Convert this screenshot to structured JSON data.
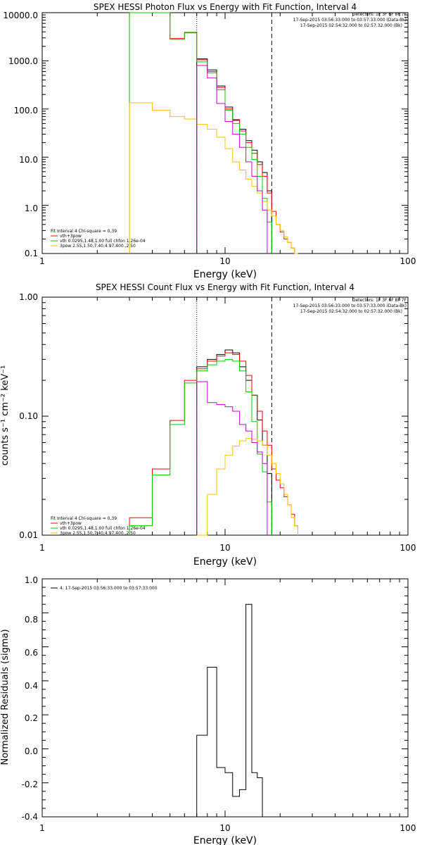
{
  "charts": [
    {
      "title": "SPEX HESSI Photon Flux vs Energy with Fit Function, Interval 4",
      "xlabel": "Energy (keV)",
      "ylabel": "",
      "legend_right": [
        "Detectors: 1F 3F 6F 8F 7F",
        "17-Sep-2015 03:56:33.000 to 03:57:33.000 (Data-Bk)",
        "17-Sep-2015 02:54:32.000 to 02:57:32.000 (Bk)"
      ],
      "legend_left": [
        "Fit Interval 4   Chi-square = 0.39",
        "vth+3pow",
        "vth 0.0295,1.48,1.00  full chfon 1.26e-04",
        "3pow 2.55,1.50,7.40,4.97,400.,2.50"
      ],
      "ticks_x": [
        "1",
        "10",
        "100"
      ],
      "ticks_y": [
        "0.1",
        "1.0",
        "10.0",
        "100.0",
        "1000.0",
        "10000.0"
      ]
    },
    {
      "title": "SPEX HESSI Count Flux vs Energy with Fit Function, Interval 4",
      "xlabel": "Energy (keV)",
      "ylabel": "counts s⁻¹ cm⁻² keV⁻¹",
      "legend_right": [
        "Detectors: 1F 3F 6F 8F 7F",
        "17-Sep-2015 03:56:33.000 to 03:57:33.000 (Data-Bk)",
        "17-Sep-2015 02:54:32.000 to 02:57:32.000 (Bk)"
      ],
      "legend_left": [
        "Fit Interval 4   Chi-square = 0.39",
        "vth+3pow",
        "vth 0.0295,1.48,1.00  full chfon 1.26e-04",
        "3pow 2.55,1.50,7.40,4.97,400.,2.50"
      ],
      "ticks_x": [
        "1",
        "10",
        "100"
      ],
      "ticks_y": [
        "0.01",
        "0.10",
        "1.00"
      ]
    },
    {
      "title": "",
      "xlabel": "Energy (keV)",
      "ylabel": "Normalized Residuals (sigma)",
      "legend_left": [
        "4. 17-Sep-2015 03:56:33.000 to 03:57:33.000"
      ],
      "ticks_x": [
        "1",
        "10",
        "100"
      ],
      "ticks_y": [
        "-0.4",
        "-0.2",
        "0.0",
        "0.2",
        "0.4",
        "0.6",
        "0.8",
        "1.0"
      ]
    }
  ],
  "chart_data": [
    {
      "type": "line",
      "xscale": "log",
      "yscale": "log",
      "xlim": [
        1,
        100
      ],
      "ylim": [
        0.1,
        10000
      ],
      "vlines": [
        {
          "x": 7.0,
          "style": "dotted"
        },
        {
          "x": 18.0,
          "style": "dashed"
        }
      ],
      "series": [
        {
          "name": "Data-Bk",
          "color": "#000000",
          "edges": [
            7,
            8,
            9,
            10,
            11,
            12,
            13,
            14,
            15,
            16,
            17,
            18
          ],
          "values": [
            1100,
            650,
            300,
            110,
            60,
            38,
            22,
            14,
            8,
            4.8,
            2.0
          ]
        },
        {
          "name": "vth+3pow",
          "color": "#ff0000",
          "edges": [
            3,
            4,
            5,
            6,
            7,
            8,
            9,
            10,
            11,
            12,
            13,
            14,
            15,
            16,
            17,
            18,
            19,
            20,
            21,
            22,
            23,
            24,
            25
          ],
          "values": [
            10000,
            10000,
            2900,
            3900,
            1050,
            600,
            280,
            100,
            58,
            35,
            20,
            12,
            7,
            4,
            1.8,
            0.75,
            0.4,
            0.28,
            0.2,
            0.17,
            0.13,
            0.1
          ]
        },
        {
          "name": "vth",
          "color": "#00cc00",
          "edges": [
            3,
            4,
            5,
            6,
            7,
            8,
            9,
            10,
            11,
            12,
            13,
            14,
            15,
            16,
            17,
            18
          ],
          "values": [
            10000,
            10000,
            2800,
            3800,
            950,
            560,
            250,
            95,
            50,
            30,
            16,
            9,
            4,
            1.4,
            0.45
          ]
        },
        {
          "name": "3pow",
          "color": "#ffc000",
          "edges": [
            3,
            4,
            5,
            6,
            7,
            8,
            9,
            10,
            11,
            12,
            13,
            14,
            15,
            16,
            17,
            18,
            19,
            20,
            21,
            22,
            23,
            24,
            25
          ],
          "values": [
            135,
            95,
            70,
            62,
            48,
            38,
            26,
            15,
            8,
            5.4,
            3.5,
            2.5,
            1.8,
            1.2,
            0.8,
            0.6,
            0.4,
            0.3,
            0.22,
            0.17,
            0.13,
            0.1
          ]
        },
        {
          "name": "magenta",
          "color": "#cc00cc",
          "edges": [
            7,
            8,
            9,
            10,
            11,
            12,
            13,
            14,
            15,
            16,
            17
          ],
          "values": [
            800,
            440,
            130,
            55,
            30,
            16,
            8,
            4,
            2,
            0.8
          ]
        }
      ]
    },
    {
      "type": "line",
      "xscale": "log",
      "yscale": "log",
      "xlim": [
        1,
        100
      ],
      "ylim": [
        0.01,
        1.0
      ],
      "vlines": [
        {
          "x": 7.0,
          "style": "dotted"
        },
        {
          "x": 18.0,
          "style": "dashed"
        }
      ],
      "series": [
        {
          "name": "Data-Bk",
          "color": "#000000",
          "edges": [
            7,
            8,
            9,
            10,
            11,
            12,
            13,
            14,
            15,
            16,
            17,
            18
          ],
          "values": [
            0.26,
            0.3,
            0.33,
            0.36,
            0.34,
            0.26,
            0.2,
            0.15,
            0.093,
            0.057,
            0.033
          ]
        },
        {
          "name": "vth+3pow",
          "color": "#ff0000",
          "edges": [
            3,
            4,
            5,
            6,
            7,
            8,
            9,
            10,
            11,
            12,
            13,
            14,
            15,
            16,
            17,
            18,
            19,
            20,
            21,
            22,
            23,
            24,
            25
          ],
          "values": [
            0.014,
            0.036,
            0.092,
            0.2,
            0.25,
            0.29,
            0.32,
            0.34,
            0.33,
            0.29,
            0.22,
            0.15,
            0.11,
            0.075,
            0.057,
            0.036,
            0.029,
            0.025,
            0.021,
            0.018,
            0.015,
            0.012
          ]
        },
        {
          "name": "vth",
          "color": "#00cc00",
          "edges": [
            3,
            4,
            5,
            6,
            7,
            8,
            9,
            10,
            11,
            12,
            13,
            14,
            15,
            16,
            17,
            18
          ],
          "values": [
            0.012,
            0.032,
            0.085,
            0.19,
            0.24,
            0.27,
            0.29,
            0.3,
            0.29,
            0.24,
            0.16,
            0.09,
            0.048,
            0.034,
            0.019
          ]
        },
        {
          "name": "3pow",
          "color": "#ffc000",
          "edges": [
            7,
            8,
            9,
            10,
            11,
            12,
            13,
            14,
            15,
            16,
            17,
            18,
            19,
            20,
            21,
            22,
            23,
            24,
            25
          ],
          "values": [
            0.01,
            0.022,
            0.036,
            0.047,
            0.056,
            0.062,
            0.065,
            0.064,
            0.062,
            0.057,
            0.047,
            0.04,
            0.033,
            0.027,
            0.022,
            0.018,
            0.014,
            0.012
          ]
        },
        {
          "name": "magenta",
          "color": "#cc00cc",
          "edges": [
            7,
            8,
            9,
            10,
            11,
            12,
            13,
            14,
            15,
            16,
            17
          ],
          "values": [
            0.195,
            0.13,
            0.125,
            0.12,
            0.11,
            0.085,
            0.075,
            0.06,
            0.05,
            0.04
          ]
        }
      ]
    },
    {
      "type": "line",
      "xscale": "log",
      "yscale": "linear",
      "xlim": [
        1,
        100
      ],
      "ylim": [
        -0.4,
        1.0
      ],
      "series": [
        {
          "name": "4. 17-Sep-2015 03:56:33.000 to 03:57:33.000",
          "color": "#000000",
          "edges": [
            7,
            8,
            9,
            10,
            11,
            12,
            13,
            14,
            15,
            16,
            17,
            18
          ],
          "values": [
            0.08,
            0.48,
            -0.11,
            -0.14,
            -0.28,
            -0.24,
            0.85,
            -0.14,
            -0.17,
            -0.4,
            -0.4
          ]
        }
      ]
    }
  ]
}
